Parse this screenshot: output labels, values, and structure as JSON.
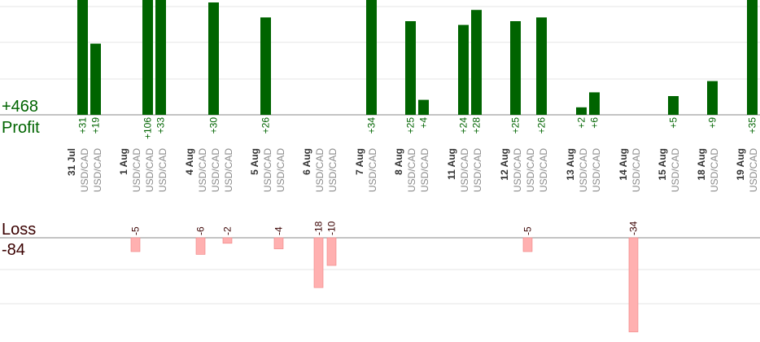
{
  "chart_data": {
    "type": "bar",
    "profit": {
      "label": "Profit",
      "total": "+468",
      "color": "#006400",
      "max": 106,
      "bars": [
        {
          "label": "+31",
          "value": 31
        },
        {
          "label": "+19",
          "value": 19
        },
        {
          "label": "+106",
          "value": 106
        },
        {
          "label": "+33",
          "value": 33
        },
        {
          "label": "+30",
          "value": 30
        },
        {
          "label": "+26",
          "value": 26
        },
        {
          "label": "+34",
          "value": 34
        },
        {
          "label": "+25",
          "value": 25
        },
        {
          "label": "+4",
          "value": 4
        },
        {
          "label": "+24",
          "value": 24
        },
        {
          "label": "+28",
          "value": 28
        },
        {
          "label": "+25",
          "value": 25
        },
        {
          "label": "+26",
          "value": 26
        },
        {
          "label": "+2",
          "value": 2
        },
        {
          "label": "+6",
          "value": 6
        },
        {
          "label": "+5",
          "value": 5
        },
        {
          "label": "+9",
          "value": 9
        },
        {
          "label": "+35",
          "value": 35
        }
      ]
    },
    "loss": {
      "label": "Loss",
      "total": "-84",
      "color": "#ffb0b0",
      "bars": [
        {
          "label": "-5",
          "value": -5
        },
        {
          "label": "-6",
          "value": -6
        },
        {
          "label": "-2",
          "value": -2
        },
        {
          "label": "-4",
          "value": -4
        },
        {
          "label": "-18",
          "value": -18
        },
        {
          "label": "-10",
          "value": -10
        },
        {
          "label": "-5",
          "value": -5
        },
        {
          "label": "-34",
          "value": -34
        }
      ]
    },
    "dates": [
      {
        "date": "31 Jul",
        "pairs": [
          "USD/CAD",
          "USD/CAD"
        ]
      },
      {
        "date": "1 Aug",
        "pairs": [
          "USD/CAD",
          "USD/CAD",
          "USD/CAD"
        ]
      },
      {
        "date": "4 Aug",
        "pairs": [
          "USD/CAD",
          "USD/CAD",
          "USD/CAD"
        ]
      },
      {
        "date": "5 Aug",
        "pairs": [
          "USD/CAD",
          "USD/CAD"
        ]
      },
      {
        "date": "6 Aug",
        "pairs": [
          "USD/CAD",
          "USD/CAD"
        ]
      },
      {
        "date": "7 Aug",
        "pairs": [
          "USD/CAD"
        ]
      },
      {
        "date": "8 Aug",
        "pairs": [
          "USD/CAD",
          "USD/CAD"
        ]
      },
      {
        "date": "11 Aug",
        "pairs": [
          "USD/CAD",
          "USD/CAD"
        ]
      },
      {
        "date": "12 Aug",
        "pairs": [
          "USD/CAD",
          "USD/CAD",
          "USD/CAD"
        ]
      },
      {
        "date": "13 Aug",
        "pairs": [
          "USD/CAD",
          "USD/CAD"
        ]
      },
      {
        "date": "14 Aug",
        "pairs": [
          "USD/CAD"
        ]
      },
      {
        "date": "15 Aug",
        "pairs": [
          "USD/CAD"
        ]
      },
      {
        "date": "18 Aug",
        "pairs": [
          "USD/CAD"
        ]
      },
      {
        "date": "19 Aug",
        "pairs": [
          "USD/CAD"
        ]
      }
    ]
  }
}
